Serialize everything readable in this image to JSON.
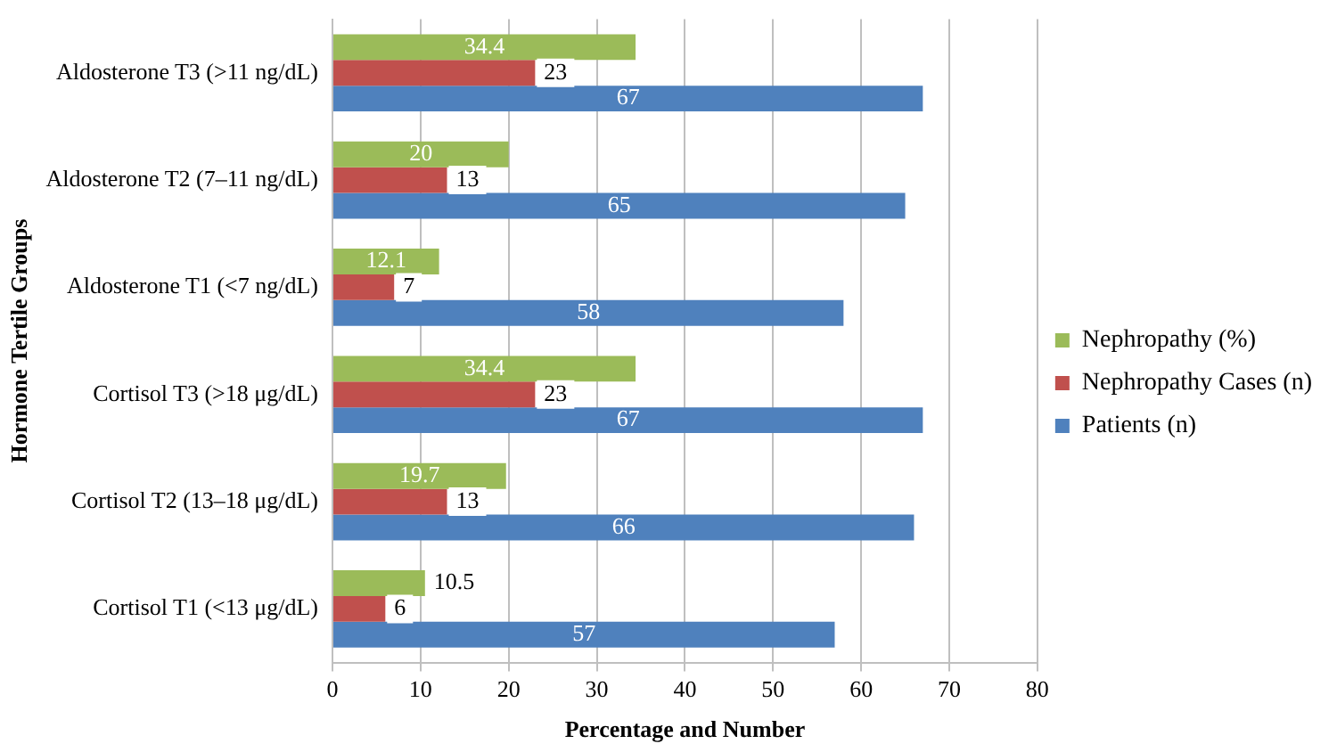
{
  "chart_data": {
    "type": "bar",
    "orientation": "horizontal",
    "xlabel": "Percentage and Number",
    "ylabel": "Hormone Tertile Groups",
    "categories": [
      "Aldosterone T3 (>11 ng/dL)",
      "Aldosterone T2 (7–11 ng/dL)",
      "Aldosterone T1 (<7 ng/dL)",
      "Cortisol T3 (>18 μg/dL)",
      "Cortisol T2 (13–18 μg/dL)",
      "Cortisol T1 (<13 μg/dL)"
    ],
    "series": [
      {
        "name": "Nephropathy (%)",
        "color": "#9bbb59",
        "values": [
          34.4,
          20,
          12.1,
          34.4,
          19.7,
          10.5
        ]
      },
      {
        "name": "Nephropathy Cases (n)",
        "color": "#c0504d",
        "values": [
          23,
          13,
          7,
          23,
          13,
          6
        ]
      },
      {
        "name": "Patients (n)",
        "color": "#4f81bd",
        "values": [
          67,
          65,
          58,
          67,
          66,
          57
        ]
      }
    ],
    "xlim": [
      0,
      80
    ],
    "xticks": [
      0,
      10,
      20,
      30,
      40,
      50,
      60,
      70,
      80
    ],
    "grid": "x",
    "legend": "right",
    "data_labels": true
  }
}
